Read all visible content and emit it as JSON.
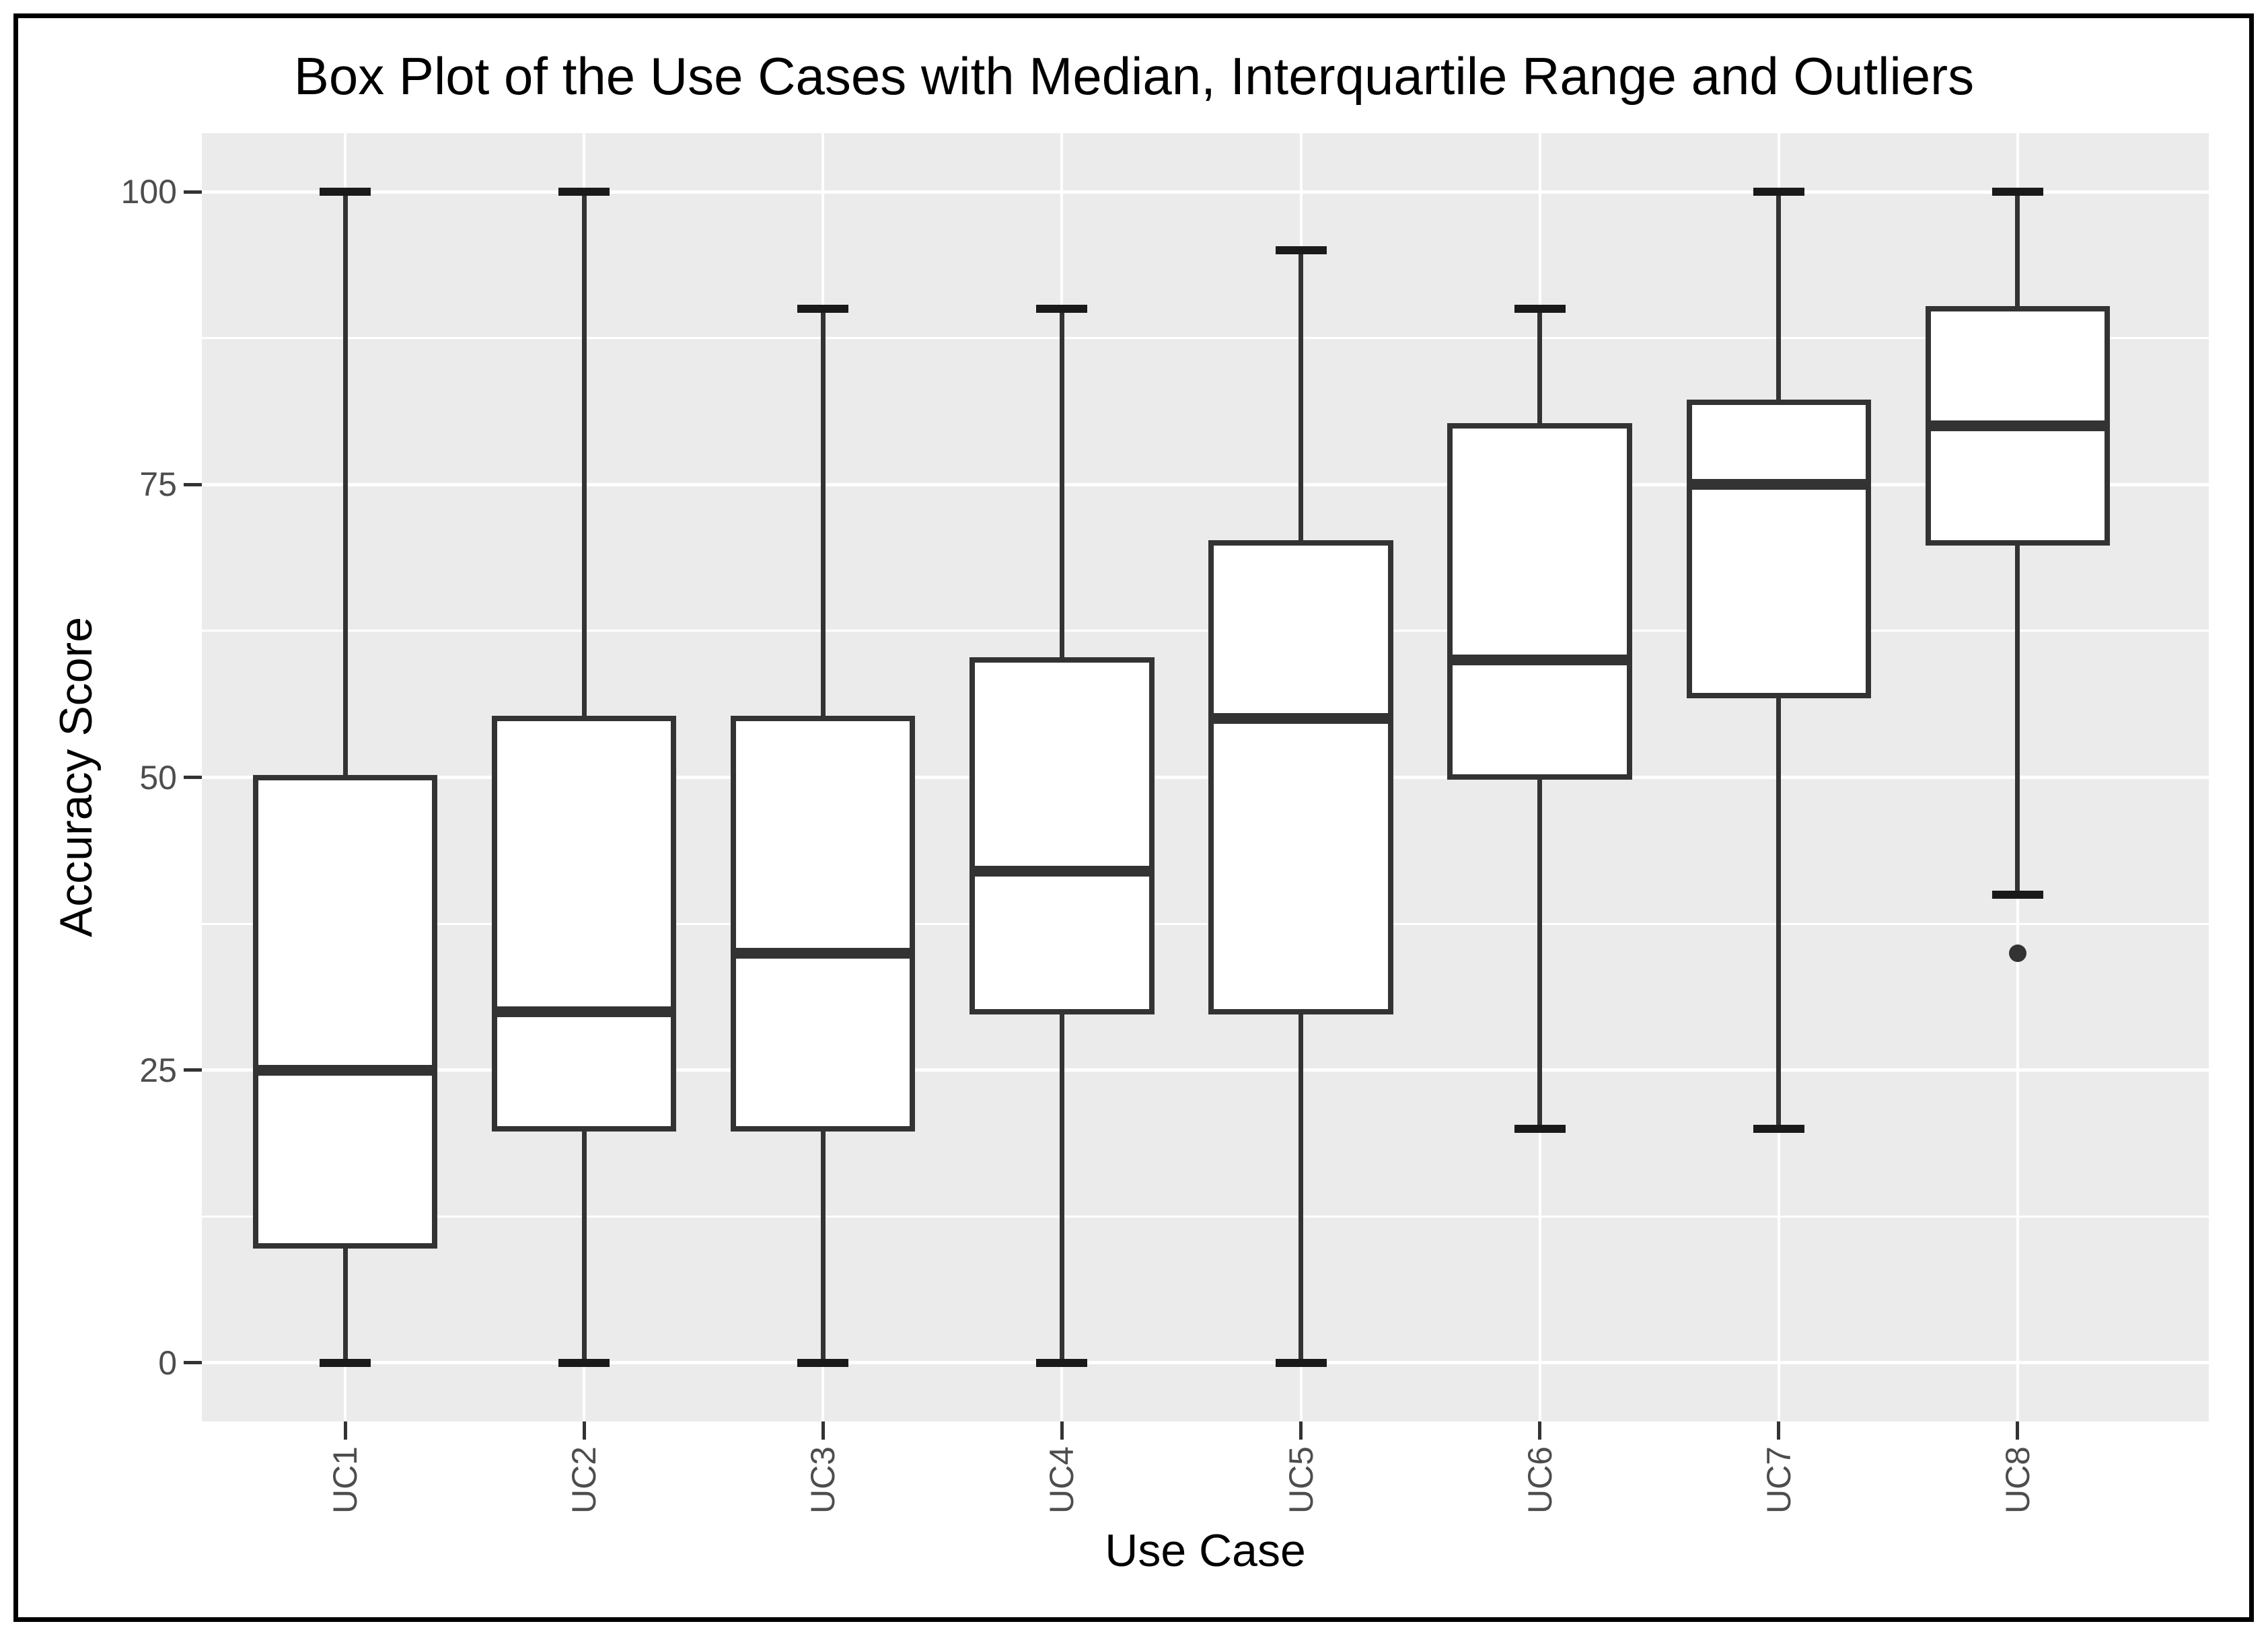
{
  "figure_title": "Box Plot of the Use Cases with Median, Interquartile Range and Outliers",
  "chart_data": {
    "type": "boxplot",
    "title": "Box Plot of the Use Cases with Median, Interquartile Range and Outliers",
    "xlabel": "Use Case",
    "ylabel": "Accuracy Score",
    "ylim": [
      -5,
      105
    ],
    "y_axis": {
      "major_ticks": [
        {
          "value": 0,
          "label": "0"
        },
        {
          "value": 25,
          "label": "25"
        },
        {
          "value": 50,
          "label": "50"
        },
        {
          "value": 75,
          "label": "75"
        },
        {
          "value": 100,
          "label": "100"
        }
      ],
      "minor_gridlines": [
        12.5,
        37.5,
        62.5,
        87.5
      ]
    },
    "categories": [
      "UC1",
      "UC2",
      "UC3",
      "UC4",
      "UC5",
      "UC6",
      "UC7",
      "UC8"
    ],
    "series": [
      {
        "category": "UC1",
        "whisker_low": 0,
        "q1": 10,
        "median": 25,
        "q3": 50,
        "whisker_high": 100,
        "outliers": []
      },
      {
        "category": "UC2",
        "whisker_low": 0,
        "q1": 20,
        "median": 30,
        "q3": 55,
        "whisker_high": 100,
        "outliers": []
      },
      {
        "category": "UC3",
        "whisker_low": 0,
        "q1": 20,
        "median": 35,
        "q3": 55,
        "whisker_high": 90,
        "outliers": []
      },
      {
        "category": "UC4",
        "whisker_low": 0,
        "q1": 30,
        "median": 42,
        "q3": 60,
        "whisker_high": 90,
        "outliers": []
      },
      {
        "category": "UC5",
        "whisker_low": 0,
        "q1": 30,
        "median": 55,
        "q3": 70,
        "whisker_high": 95,
        "outliers": []
      },
      {
        "category": "UC6",
        "whisker_low": 20,
        "q1": 50,
        "median": 60,
        "q3": 80,
        "whisker_high": 90,
        "outliers": []
      },
      {
        "category": "UC7",
        "whisker_low": 20,
        "q1": 57,
        "median": 75,
        "q3": 82,
        "whisker_high": 100,
        "outliers": []
      },
      {
        "category": "UC8",
        "whisker_low": 40,
        "q1": 70,
        "median": 80,
        "q3": 90,
        "whisker_high": 100,
        "outliers": [
          35
        ]
      }
    ],
    "legend": null,
    "grid": {
      "horizontal": "major+minor",
      "vertical": "major-at-categories"
    },
    "colors": {
      "panel_background": "#EBEBEB",
      "gridline": "#FFFFFF",
      "box_fill": "#FFFFFF",
      "box_border": "#333333",
      "median": "#333333",
      "whisker": "#333333",
      "outlier": "#333333",
      "axis_text": "#4D4D4D",
      "title_text": "#000000",
      "figure_frame": "#000000"
    }
  }
}
